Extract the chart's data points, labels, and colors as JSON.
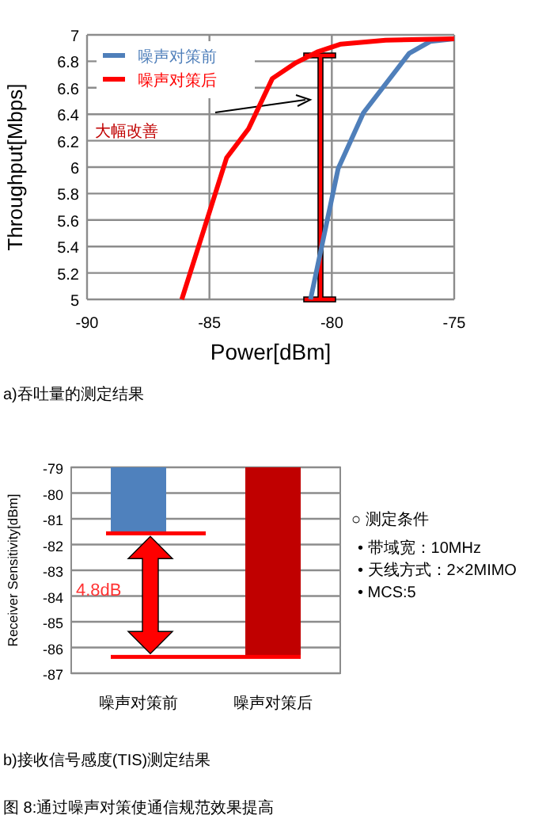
{
  "chart_data": [
    {
      "type": "line",
      "xlabel": "Power[dBm]",
      "ylabel": "Throughput[Mbps]",
      "xlim": [
        -90,
        -75
      ],
      "ylim": [
        5,
        7
      ],
      "xticks": [
        -90,
        -85,
        -80,
        -75
      ],
      "yticks": [
        5,
        5.2,
        5.4,
        5.6,
        5.8,
        6,
        6.2,
        6.4,
        6.6,
        6.8,
        7
      ],
      "grid": true,
      "legend": "top left",
      "series": [
        {
          "name": "噪声对策前",
          "color": "#4f7fba",
          "x": [
            -80.87,
            -79.74,
            -78.71,
            -76.84,
            -75.98,
            -75
          ],
          "values": [
            5.0,
            5.99,
            6.41,
            6.86,
            6.95,
            6.97
          ]
        },
        {
          "name": "噪声对策后",
          "color": "#ff0000",
          "x": [
            -86.13,
            -85.12,
            -84.3,
            -83.4,
            -82.43,
            -81.46,
            -80.6,
            -79.63,
            -77.8,
            -75
          ],
          "values": [
            5.0,
            5.59,
            6.07,
            6.29,
            6.67,
            6.79,
            6.87,
            6.93,
            6.96,
            6.97
          ]
        }
      ],
      "annotations": [
        "大幅改善",
        "a)吞吐量的测定结果"
      ]
    },
    {
      "type": "bar",
      "ylabel": "Receiver Sensitivity[dBm]",
      "ylim": [
        -87,
        -79
      ],
      "yticks": [
        -87,
        -86,
        -85,
        -84,
        -83,
        -82,
        -81,
        -80,
        -79
      ],
      "grid": true,
      "categories": [
        "噪声对策前",
        "噪声对策后"
      ],
      "values": [
        -81.5,
        -86.3
      ],
      "colors": [
        "#4f81bd",
        "#c00000"
      ],
      "annotations": [
        "4.8dB",
        "○ 测定条件",
        "• 带域宽：10MHz",
        "• 天线方式：2×2MIMO",
        "• MCS:5",
        "b)接收信号感度(TIS)测定结果",
        "图 8:通过噪声对策使通信规范效果提高"
      ]
    }
  ]
}
